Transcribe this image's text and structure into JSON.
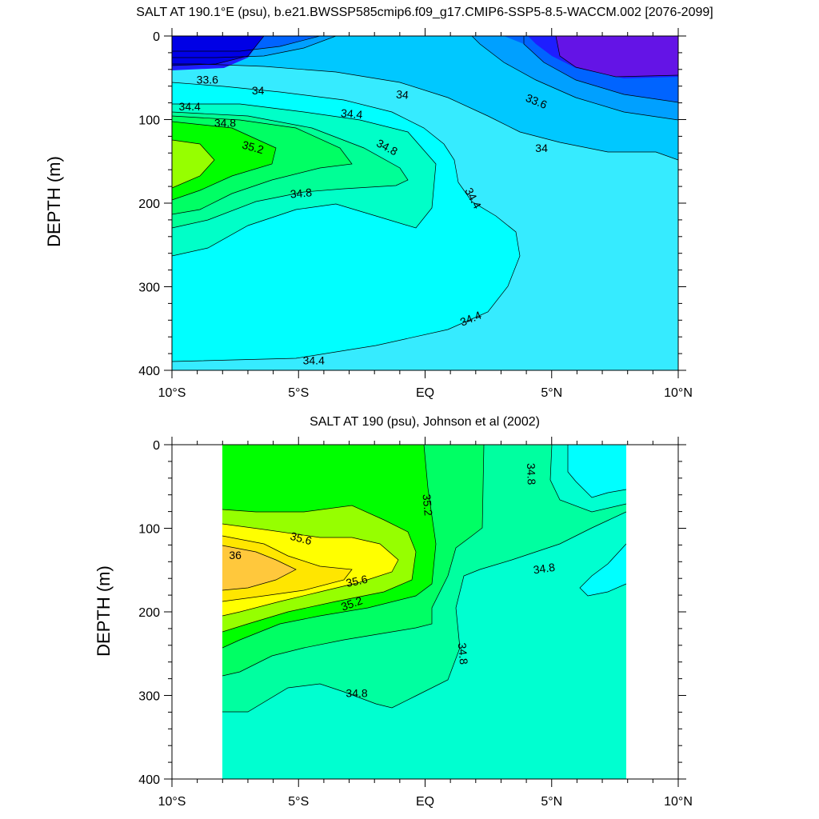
{
  "chart_data": [
    {
      "type": "contour",
      "title": "SALT AT 190.1°E (psu), b.e21.BWSSP585cmip6.f09_g17.CMIP6-SSP5-8.5-WACCM.002 [2076-2099]",
      "ylabel": "DEPTH (m)",
      "xlabel": "",
      "x_ticks": [
        "10°S",
        "5°S",
        "EQ",
        "5°N",
        "10°N"
      ],
      "y_ticks": [
        "0",
        "100",
        "200",
        "300",
        "400"
      ],
      "xlim": [
        -10,
        10
      ],
      "ylim": [
        400,
        0
      ],
      "x_data_range": [
        -10,
        10
      ],
      "contour_interval": 0.2,
      "contour_labels": [
        {
          "text": "33.6",
          "x": -8.6,
          "y": 52,
          "rot": 0
        },
        {
          "text": "34",
          "x": -6.6,
          "y": 65,
          "rot": 0
        },
        {
          "text": "34",
          "x": -0.9,
          "y": 70,
          "rot": 5
        },
        {
          "text": "33.6",
          "x": 4.4,
          "y": 78,
          "rot": 22
        },
        {
          "text": "34.4",
          "x": -9.3,
          "y": 84,
          "rot": 0
        },
        {
          "text": "34.4",
          "x": -2.9,
          "y": 93,
          "rot": 5
        },
        {
          "text": "34.8",
          "x": -7.9,
          "y": 104,
          "rot": 0
        },
        {
          "text": "35.2",
          "x": -6.8,
          "y": 133,
          "rot": 15
        },
        {
          "text": "34.8",
          "x": -1.5,
          "y": 133,
          "rot": 28
        },
        {
          "text": "34",
          "x": 4.6,
          "y": 134,
          "rot": 0
        },
        {
          "text": "34.4",
          "x": 1.9,
          "y": 194,
          "rot": 62
        },
        {
          "text": "34.8",
          "x": -4.9,
          "y": 188,
          "rot": -5
        },
        {
          "text": "34.4",
          "x": 1.8,
          "y": 338,
          "rot": -22
        },
        {
          "text": "34.4",
          "x": -4.4,
          "y": 388,
          "rot": 0
        }
      ]
    },
    {
      "type": "contour",
      "title": "SALT AT 190 (psu), Johnson et al (2002)",
      "ylabel": "DEPTH (m)",
      "xlabel": "",
      "x_ticks": [
        "10°S",
        "5°S",
        "EQ",
        "5°N",
        "10°N"
      ],
      "y_ticks": [
        "0",
        "100",
        "200",
        "300",
        "400"
      ],
      "xlim": [
        -10,
        10
      ],
      "ylim": [
        400,
        0
      ],
      "x_data_range": [
        -8,
        8
      ],
      "contour_interval": 0.2,
      "contour_labels": [
        {
          "text": "35.6",
          "x": -4.9,
          "y": 112,
          "rot": 15
        },
        {
          "text": "36",
          "x": -7.5,
          "y": 132,
          "rot": 0
        },
        {
          "text": "35.2",
          "x": 0.1,
          "y": 72,
          "rot": 85
        },
        {
          "text": "34.8",
          "x": 4.2,
          "y": 35,
          "rot": 88
        },
        {
          "text": "35.6",
          "x": -2.7,
          "y": 163,
          "rot": -12
        },
        {
          "text": "34.8",
          "x": 4.7,
          "y": 148,
          "rot": -8
        },
        {
          "text": "35.2",
          "x": -2.9,
          "y": 190,
          "rot": -20
        },
        {
          "text": "34.8",
          "x": 1.5,
          "y": 250,
          "rot": 85
        },
        {
          "text": "34.8",
          "x": -2.7,
          "y": 297,
          "rot": 0
        }
      ]
    }
  ]
}
